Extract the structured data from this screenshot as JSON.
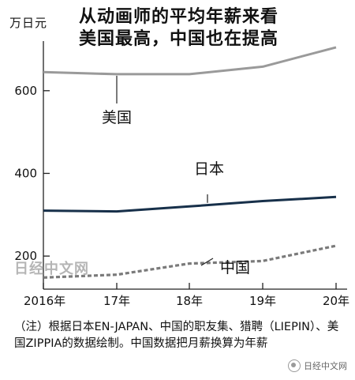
{
  "chart_data": {
    "type": "line",
    "title": [
      "从动画师的平均年薪来看",
      "美国最高，中国也在提高"
    ],
    "unit": "万日元",
    "categories": [
      "2016年",
      "17年",
      "18年",
      "19年",
      "20年"
    ],
    "x": [
      2016,
      2017,
      2018,
      2019,
      2020
    ],
    "yticks": [
      200,
      400,
      600
    ],
    "ylim": [
      120,
      720
    ],
    "grid": false,
    "series": [
      {
        "name": "美国",
        "style": "solid",
        "color": "#9a9a9a",
        "values": [
          645,
          640,
          640,
          658,
          705
        ]
      },
      {
        "name": "日本",
        "style": "solid",
        "color": "#17304a",
        "values": [
          310,
          308,
          320,
          333,
          343
        ]
      },
      {
        "name": "中国",
        "style": "dotted",
        "color": "#7a7a7a",
        "values": [
          148,
          155,
          182,
          188,
          225
        ]
      }
    ]
  },
  "watermark": "日经中文网",
  "note": "（注）根据日本EN-JAPAN、中国的职友集、猎聘（LIEPIN）、美国ZIPPIA的数据绘制。中国数据把月薪换算为年薪",
  "brand": {
    "label": "日经中文网",
    "icon": "wechat-icon"
  }
}
